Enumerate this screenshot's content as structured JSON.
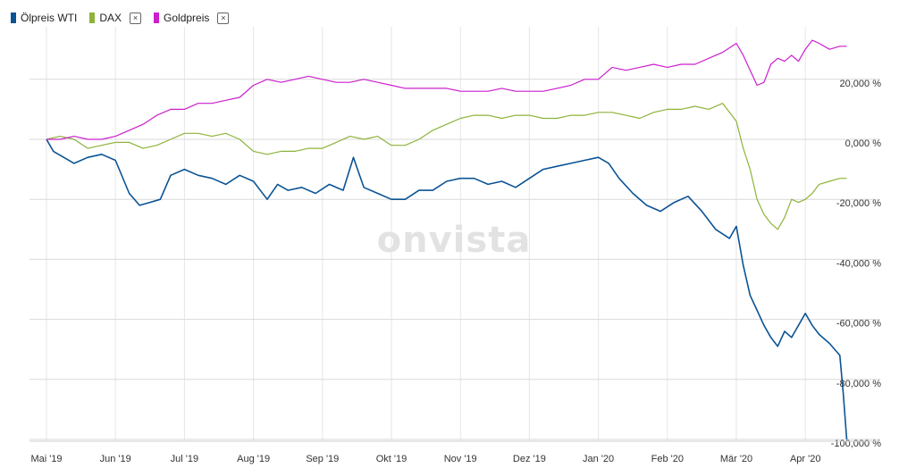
{
  "watermark": "onvista",
  "legend": [
    {
      "label": "Ölpreis WTI",
      "color": "#0b5394",
      "closable": false,
      "close_label": ""
    },
    {
      "label": "DAX",
      "color": "#8db33a",
      "closable": true,
      "close_label": "×"
    },
    {
      "label": "Goldpreis",
      "color": "#cc1fcc",
      "closable": true,
      "close_label": "×"
    }
  ],
  "chart_data": {
    "type": "line",
    "xlabel": "",
    "ylabel": "",
    "ylim": [
      -101,
      35
    ],
    "y_ticks": [
      {
        "value": 20,
        "label": "20,000 %"
      },
      {
        "value": 0,
        "label": "0,000 %"
      },
      {
        "value": -20,
        "label": "-20,000 %"
      },
      {
        "value": -40,
        "label": "-40,000 %"
      },
      {
        "value": -60,
        "label": "-60,000 %"
      },
      {
        "value": -80,
        "label": "-80,000 %"
      },
      {
        "value": -100,
        "label": "-100,000 %"
      }
    ],
    "x_ticks": [
      {
        "month": 0,
        "label": "Mai '19"
      },
      {
        "month": 1,
        "label": "Jun '19"
      },
      {
        "month": 2,
        "label": "Jul '19"
      },
      {
        "month": 3,
        "label": "Aug '19"
      },
      {
        "month": 4,
        "label": "Sep '19"
      },
      {
        "month": 5,
        "label": "Okt '19"
      },
      {
        "month": 6,
        "label": "Nov '19"
      },
      {
        "month": 7,
        "label": "Dez '19"
      },
      {
        "month": 8,
        "label": "Jan '20"
      },
      {
        "month": 9,
        "label": "Feb '20"
      },
      {
        "month": 10,
        "label": "Mär '20"
      },
      {
        "month": 11,
        "label": "Apr '20"
      }
    ],
    "grid": true,
    "legend_position": "top-left",
    "series": [
      {
        "name": "Ölpreis WTI",
        "color": "#0b5394",
        "x": [
          0,
          0.1,
          0.25,
          0.4,
          0.6,
          0.8,
          1.0,
          1.2,
          1.35,
          1.5,
          1.65,
          1.8,
          2.0,
          2.2,
          2.4,
          2.6,
          2.8,
          3.0,
          3.2,
          3.35,
          3.5,
          3.7,
          3.9,
          4.1,
          4.3,
          4.45,
          4.6,
          4.8,
          5.0,
          5.2,
          5.4,
          5.6,
          5.8,
          6.0,
          6.2,
          6.4,
          6.6,
          6.8,
          7.0,
          7.2,
          7.4,
          7.6,
          7.8,
          8.0,
          8.15,
          8.3,
          8.5,
          8.7,
          8.9,
          9.1,
          9.3,
          9.5,
          9.7,
          9.9,
          10.0,
          10.1,
          10.2,
          10.3,
          10.4,
          10.5,
          10.6,
          10.7,
          10.8,
          10.9,
          11.0,
          11.1,
          11.2,
          11.35,
          11.5,
          11.55,
          11.6
        ],
        "y": [
          0,
          -4,
          -6,
          -8,
          -6,
          -5,
          -7,
          -18,
          -22,
          -21,
          -20,
          -12,
          -10,
          -12,
          -13,
          -15,
          -12,
          -14,
          -20,
          -15,
          -17,
          -16,
          -18,
          -15,
          -17,
          -6,
          -16,
          -18,
          -20,
          -20,
          -17,
          -17,
          -14,
          -13,
          -13,
          -15,
          -14,
          -16,
          -13,
          -10,
          -9,
          -8,
          -7,
          -6,
          -8,
          -13,
          -18,
          -22,
          -24,
          -21,
          -19,
          -24,
          -30,
          -33,
          -29,
          -42,
          -52,
          -57,
          -62,
          -66,
          -69,
          -64,
          -66,
          -62,
          -58,
          -62,
          -65,
          -68,
          -72,
          -85,
          -100
        ]
      },
      {
        "name": "DAX",
        "color": "#8db33a",
        "x": [
          0,
          0.2,
          0.4,
          0.6,
          0.8,
          1.0,
          1.2,
          1.4,
          1.6,
          1.8,
          2.0,
          2.2,
          2.4,
          2.6,
          2.8,
          3.0,
          3.2,
          3.4,
          3.6,
          3.8,
          4.0,
          4.2,
          4.4,
          4.6,
          4.8,
          5.0,
          5.2,
          5.4,
          5.6,
          5.8,
          6.0,
          6.2,
          6.4,
          6.6,
          6.8,
          7.0,
          7.2,
          7.4,
          7.6,
          7.8,
          8.0,
          8.2,
          8.4,
          8.6,
          8.8,
          9.0,
          9.2,
          9.4,
          9.6,
          9.8,
          10.0,
          10.1,
          10.2,
          10.3,
          10.4,
          10.5,
          10.6,
          10.7,
          10.8,
          10.9,
          11.0,
          11.1,
          11.2,
          11.35,
          11.5,
          11.6
        ],
        "y": [
          0,
          1,
          0,
          -3,
          -2,
          -1,
          -1,
          -3,
          -2,
          0,
          2,
          2,
          1,
          2,
          0,
          -4,
          -5,
          -4,
          -4,
          -3,
          -3,
          -1,
          1,
          0,
          1,
          -2,
          -2,
          0,
          3,
          5,
          7,
          8,
          8,
          7,
          8,
          8,
          7,
          7,
          8,
          8,
          9,
          9,
          8,
          7,
          9,
          10,
          10,
          11,
          10,
          12,
          6,
          -3,
          -10,
          -20,
          -25,
          -28,
          -30,
          -26,
          -20,
          -21,
          -20,
          -18,
          -15,
          -14,
          -13,
          -13
        ]
      },
      {
        "name": "Goldpreis",
        "color": "#cc1fcc",
        "x": [
          0,
          0.2,
          0.4,
          0.6,
          0.8,
          1.0,
          1.2,
          1.4,
          1.6,
          1.8,
          2.0,
          2.2,
          2.4,
          2.6,
          2.8,
          3.0,
          3.2,
          3.4,
          3.6,
          3.8,
          4.0,
          4.2,
          4.4,
          4.6,
          4.8,
          5.0,
          5.2,
          5.4,
          5.6,
          5.8,
          6.0,
          6.2,
          6.4,
          6.6,
          6.8,
          7.0,
          7.2,
          7.4,
          7.6,
          7.8,
          8.0,
          8.2,
          8.4,
          8.6,
          8.8,
          9.0,
          9.2,
          9.4,
          9.6,
          9.8,
          10.0,
          10.1,
          10.2,
          10.3,
          10.4,
          10.5,
          10.6,
          10.7,
          10.8,
          10.9,
          11.0,
          11.1,
          11.2,
          11.35,
          11.5,
          11.6
        ],
        "y": [
          0,
          0,
          1,
          0,
          0,
          1,
          3,
          5,
          8,
          10,
          10,
          12,
          12,
          13,
          14,
          18,
          20,
          19,
          20,
          21,
          20,
          19,
          19,
          20,
          19,
          18,
          17,
          17,
          17,
          17,
          16,
          16,
          16,
          17,
          16,
          16,
          16,
          17,
          18,
          20,
          20,
          24,
          23,
          24,
          25,
          24,
          25,
          25,
          27,
          29,
          32,
          28,
          23,
          18,
          19,
          25,
          27,
          26,
          28,
          26,
          30,
          33,
          32,
          30,
          31,
          31
        ]
      }
    ]
  }
}
